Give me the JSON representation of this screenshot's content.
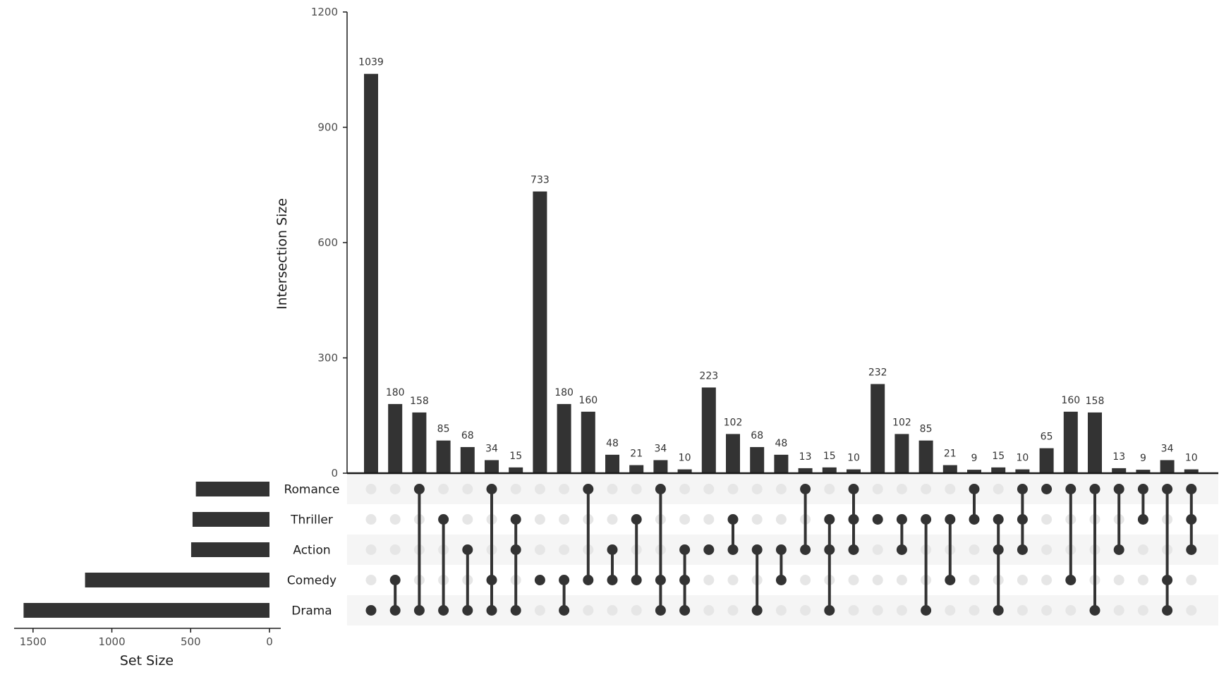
{
  "chart_data": {
    "type": "upset",
    "sets": [
      "Romance",
      "Thriller",
      "Action",
      "Comedy",
      "Drama"
    ],
    "set_sizes": [
      467,
      488,
      497,
      1170,
      1560
    ],
    "set_size_axis": {
      "title": "Set Size",
      "ticks": [
        1500,
        1000,
        500,
        0
      ],
      "lim": [
        1620,
        0
      ]
    },
    "intersection_axis": {
      "title": "Intersection Size",
      "ticks": [
        0,
        300,
        600,
        900,
        1200
      ],
      "lim": [
        0,
        1200
      ]
    },
    "intersections": [
      {
        "sets": [
          "Drama"
        ],
        "size": 1039
      },
      {
        "sets": [
          "Comedy",
          "Drama"
        ],
        "size": 180
      },
      {
        "sets": [
          "Romance",
          "Drama"
        ],
        "size": 158
      },
      {
        "sets": [
          "Thriller",
          "Drama"
        ],
        "size": 85
      },
      {
        "sets": [
          "Action",
          "Drama"
        ],
        "size": 68
      },
      {
        "sets": [
          "Romance",
          "Comedy",
          "Drama"
        ],
        "size": 34
      },
      {
        "sets": [
          "Thriller",
          "Action",
          "Drama"
        ],
        "size": 15
      },
      {
        "sets": [
          "Comedy"
        ],
        "size": 733
      },
      {
        "sets": [
          "Comedy",
          "Drama"
        ],
        "size": 180
      },
      {
        "sets": [
          "Romance",
          "Comedy"
        ],
        "size": 160
      },
      {
        "sets": [
          "Action",
          "Comedy"
        ],
        "size": 48
      },
      {
        "sets": [
          "Thriller",
          "Comedy"
        ],
        "size": 21
      },
      {
        "sets": [
          "Romance",
          "Comedy",
          "Drama"
        ],
        "size": 34
      },
      {
        "sets": [
          "Action",
          "Comedy",
          "Drama"
        ],
        "size": 10
      },
      {
        "sets": [
          "Action"
        ],
        "size": 223
      },
      {
        "sets": [
          "Thriller",
          "Action"
        ],
        "size": 102
      },
      {
        "sets": [
          "Action",
          "Drama"
        ],
        "size": 68
      },
      {
        "sets": [
          "Action",
          "Comedy"
        ],
        "size": 48
      },
      {
        "sets": [
          "Romance",
          "Action"
        ],
        "size": 13
      },
      {
        "sets": [
          "Thriller",
          "Action",
          "Drama"
        ],
        "size": 15
      },
      {
        "sets": [
          "Romance",
          "Thriller",
          "Action"
        ],
        "size": 10
      },
      {
        "sets": [
          "Thriller"
        ],
        "size": 232
      },
      {
        "sets": [
          "Thriller",
          "Action"
        ],
        "size": 102
      },
      {
        "sets": [
          "Thriller",
          "Drama"
        ],
        "size": 85
      },
      {
        "sets": [
          "Thriller",
          "Comedy"
        ],
        "size": 21
      },
      {
        "sets": [
          "Romance",
          "Thriller"
        ],
        "size": 9
      },
      {
        "sets": [
          "Thriller",
          "Action",
          "Drama"
        ],
        "size": 15
      },
      {
        "sets": [
          "Romance",
          "Thriller",
          "Action"
        ],
        "size": 10
      },
      {
        "sets": [
          "Romance"
        ],
        "size": 65
      },
      {
        "sets": [
          "Romance",
          "Comedy"
        ],
        "size": 160
      },
      {
        "sets": [
          "Romance",
          "Drama"
        ],
        "size": 158
      },
      {
        "sets": [
          "Romance",
          "Action"
        ],
        "size": 13
      },
      {
        "sets": [
          "Romance",
          "Thriller"
        ],
        "size": 9
      },
      {
        "sets": [
          "Romance",
          "Comedy",
          "Drama"
        ],
        "size": 34
      },
      {
        "sets": [
          "Romance",
          "Thriller",
          "Action"
        ],
        "size": 10
      }
    ],
    "colors": {
      "bar": "#333333",
      "dot_active": "#333333",
      "dot_inactive": "#e6e6e6",
      "row_stripe": "#f5f5f5",
      "axis": "#1a1a1a"
    }
  }
}
